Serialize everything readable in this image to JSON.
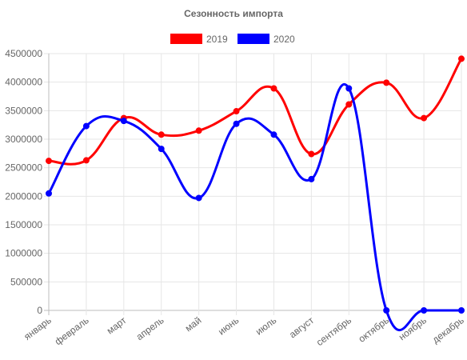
{
  "chart_data": {
    "type": "line",
    "title": "Сезонность импорта",
    "categories": [
      "январь",
      "февраль",
      "март",
      "апрель",
      "май",
      "июнь",
      "июль",
      "август",
      "сентябрь",
      "октябрь",
      "ноябрь",
      "декабрь"
    ],
    "series": [
      {
        "name": "2019",
        "color": "#ff0000",
        "values": [
          2620000,
          2630000,
          3370000,
          3080000,
          3150000,
          3490000,
          3890000,
          2740000,
          3610000,
          3990000,
          3370000,
          4410000
        ]
      },
      {
        "name": "2020",
        "color": "#0000ff",
        "values": [
          2050000,
          3230000,
          3320000,
          2830000,
          1970000,
          3270000,
          3080000,
          2300000,
          3890000,
          0,
          0,
          0
        ]
      }
    ],
    "ylim": [
      0,
      4500000
    ],
    "yticks": [
      "0",
      "500000",
      "1000000",
      "1500000",
      "2000000",
      "2500000",
      "3000000",
      "3500000",
      "4000000",
      "4500000"
    ],
    "grid": true,
    "legend": "top"
  }
}
